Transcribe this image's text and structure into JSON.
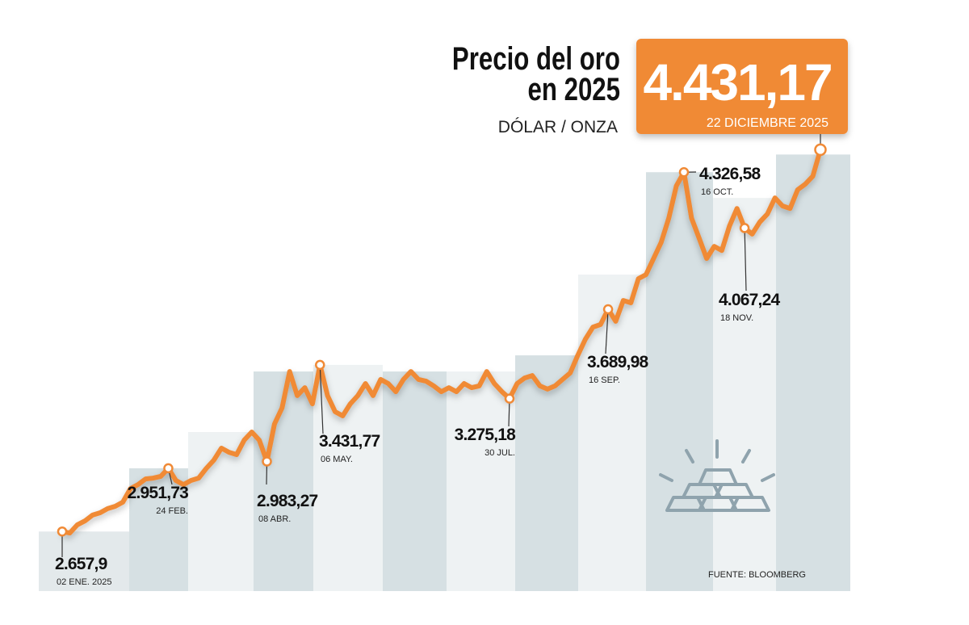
{
  "chart_data": {
    "type": "line",
    "title": "Precio del oro en 2025",
    "subtitle": "DÓLAR / ONZA",
    "source": "FUENTE: BLOOMBERG",
    "color": "#f08a36",
    "ylim": [
      2400,
      4500
    ],
    "categories": [
      "02 ENE. 2025",
      null,
      null,
      null,
      null,
      null,
      null,
      null,
      null,
      null,
      null,
      null,
      null,
      null,
      "24 FEB.",
      null,
      null,
      null,
      null,
      null,
      null,
      null,
      null,
      null,
      null,
      null,
      null,
      "08 ABR.",
      null,
      null,
      null,
      null,
      null,
      null,
      "06 MAY.",
      null,
      null,
      null,
      null,
      null,
      null,
      null,
      null,
      null,
      null,
      null,
      null,
      null,
      null,
      null,
      null,
      null,
      null,
      null,
      null,
      null,
      null,
      null,
      null,
      "30 JUL.",
      null,
      null,
      null,
      null,
      null,
      null,
      null,
      null,
      null,
      null,
      null,
      null,
      "16 SEP.",
      null,
      null,
      null,
      null,
      null,
      null,
      null,
      null,
      null,
      "16 OCT.",
      null,
      null,
      null,
      null,
      null,
      null,
      null,
      "18 NOV.",
      null,
      null,
      null,
      null,
      null,
      null,
      null,
      null,
      null,
      "22 DICIEMBRE 2025"
    ],
    "values": [
      2657.9,
      2651,
      2689,
      2707,
      2734,
      2745,
      2764,
      2775,
      2794,
      2857,
      2876,
      2902,
      2906,
      2914,
      2951.73,
      2895,
      2876,
      2895,
      2906,
      2951,
      2989,
      3045,
      3026,
      3015,
      3082,
      3120,
      3082,
      2983.27,
      3157,
      3232,
      3401,
      3289,
      3326,
      3251,
      3431.77,
      3289,
      3214,
      3195,
      3251,
      3289,
      3345,
      3289,
      3364,
      3345,
      3307,
      3364,
      3401,
      3364,
      3356,
      3334,
      3307,
      3326,
      3307,
      3345,
      3326,
      3334,
      3401,
      3345,
      3307,
      3275.18,
      3345,
      3371,
      3382,
      3334,
      3319,
      3334,
      3364,
      3394,
      3476,
      3551,
      3607,
      3619,
      3689.98,
      3634,
      3731,
      3720,
      3832,
      3851,
      3926,
      4001,
      4113,
      4263,
      4326.58,
      4113,
      4020,
      3926,
      3982,
      3963,
      4076,
      4158,
      4067.24,
      4039,
      4095,
      4132,
      4207,
      4170,
      4158,
      4245,
      4271,
      4308,
      4431.17
    ],
    "value_labels": [
      "2.657,9",
      null,
      null,
      null,
      null,
      null,
      null,
      null,
      null,
      null,
      null,
      null,
      null,
      null,
      "2.951,73",
      null,
      null,
      null,
      null,
      null,
      null,
      null,
      null,
      null,
      null,
      null,
      null,
      "2.983,27",
      null,
      null,
      null,
      null,
      null,
      null,
      "3.431,77",
      null,
      null,
      null,
      null,
      null,
      null,
      null,
      null,
      null,
      null,
      null,
      null,
      null,
      null,
      null,
      null,
      null,
      null,
      null,
      null,
      null,
      null,
      null,
      null,
      "3.275,18",
      null,
      null,
      null,
      null,
      null,
      null,
      null,
      null,
      null,
      null,
      null,
      null,
      "3.689,98",
      null,
      null,
      null,
      null,
      null,
      null,
      null,
      null,
      null,
      "4.326,58",
      null,
      null,
      null,
      null,
      null,
      null,
      null,
      "4.067,24",
      null,
      null,
      null,
      null,
      null,
      null,
      null,
      null,
      null,
      "4.431,17"
    ]
  }
}
